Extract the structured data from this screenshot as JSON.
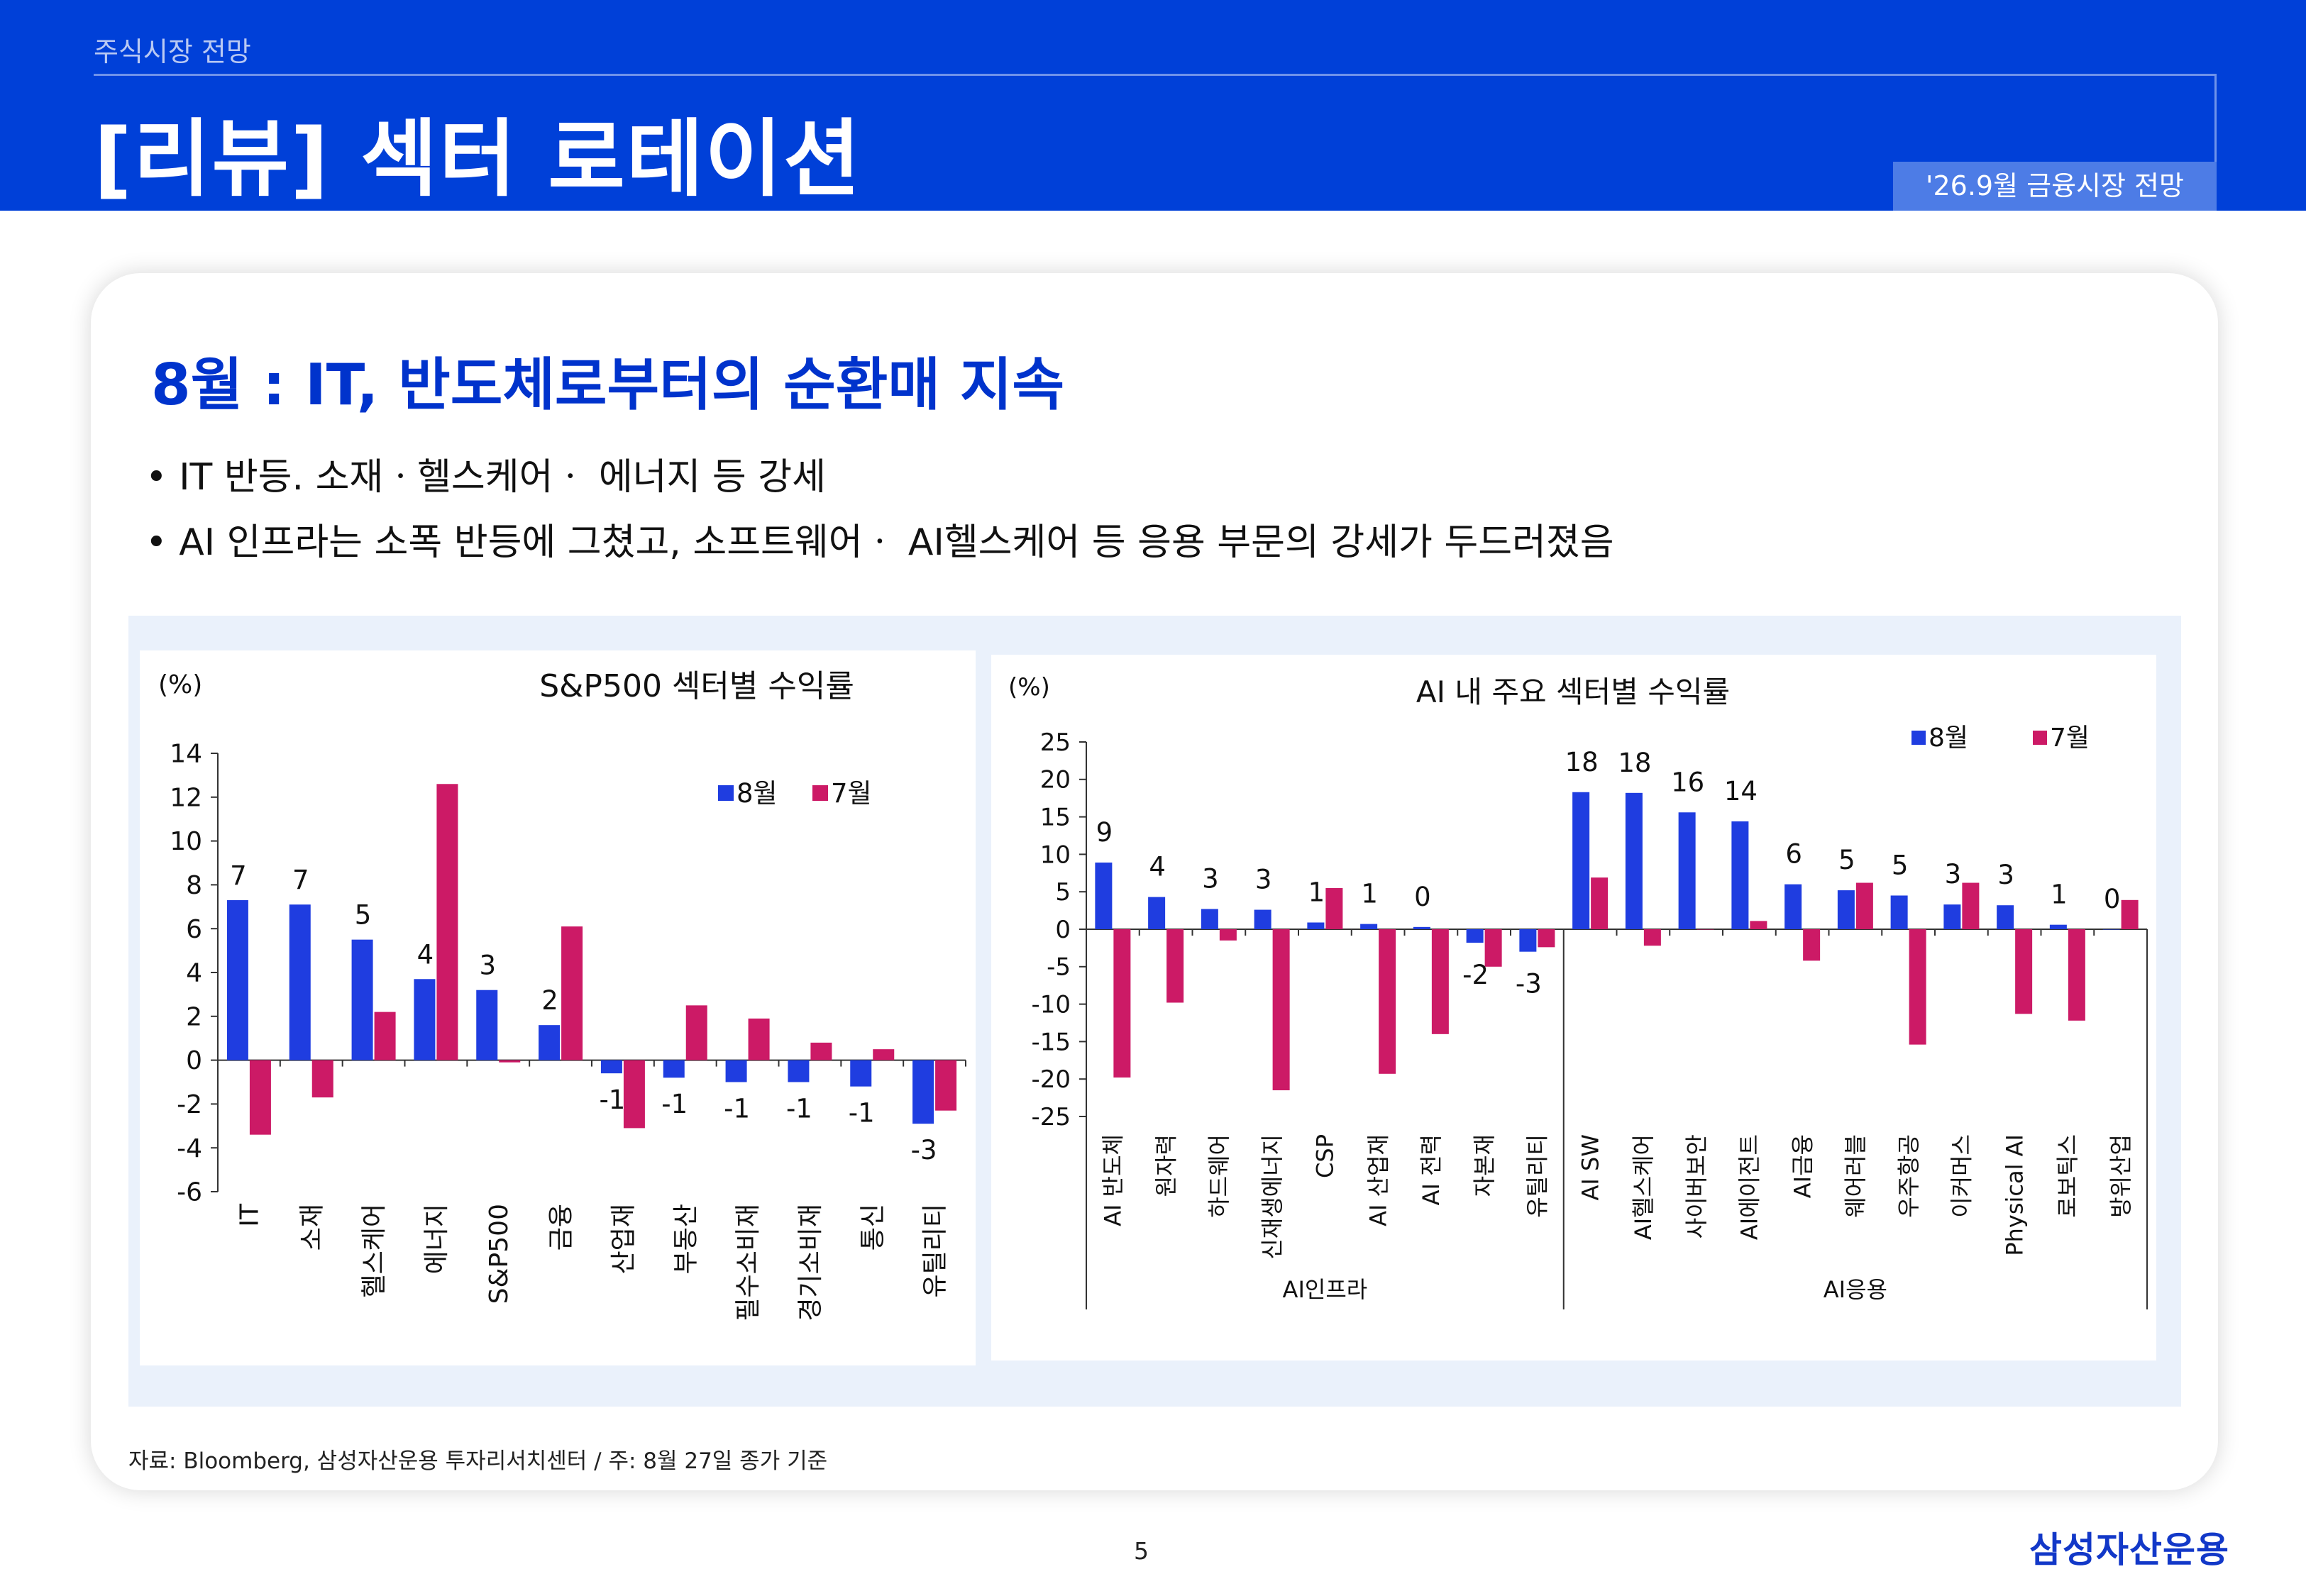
{
  "header": {
    "section": "주식시장 전망",
    "title": "[리뷰] 섹터 로테이션",
    "tag": "'26.9월 금융시장 전망"
  },
  "headline": "8월 : IT, 반도체로부터의 순환매 지속",
  "bullets": [
    "• IT 반등. 소재ㆍ헬스케어ㆍ 에너지 등 강세",
    "• AI 인프라는 소폭 반등에 그쳤고, 소프트웨어ㆍ AI헬스케어 등 응용 부문의 강세가 두드러졌음"
  ],
  "colors": {
    "aug": "#1f3de0",
    "jul": "#cc1a66",
    "header": "#0040d8"
  },
  "chart_data": [
    {
      "type": "bar",
      "title": "S&P500 섹터별 수익률",
      "unit": "(%)",
      "categories": [
        "IT",
        "소재",
        "헬스케어",
        "에너지",
        "S&P500",
        "금융",
        "산업재",
        "부동산",
        "필수소비재",
        "경기소비재",
        "통신",
        "유틸리티"
      ],
      "series": [
        {
          "name": "8월",
          "values": [
            7.3,
            7.1,
            5.5,
            3.7,
            3.2,
            1.6,
            -0.6,
            -0.8,
            -1.0,
            -1.0,
            -1.2,
            -2.9
          ]
        },
        {
          "name": "7월",
          "values": [
            -3.4,
            -1.7,
            2.2,
            12.6,
            -0.1,
            6.1,
            -3.1,
            2.5,
            1.9,
            0.8,
            0.5,
            -2.3
          ]
        }
      ],
      "data_labels": [
        "7",
        "7",
        "5",
        "4",
        "3",
        "2",
        "-1",
        "-1",
        "-1",
        "-1",
        "-1",
        "-3"
      ],
      "ylim": [
        -6,
        14
      ],
      "yticks": [
        14,
        12,
        10,
        8,
        6,
        4,
        2,
        0,
        -2,
        -4,
        -6
      ],
      "legend": "top-right"
    },
    {
      "type": "bar",
      "title": "AI 내 주요 섹터별 수익률",
      "unit": "(%)",
      "categories": [
        "AI 반도체",
        "원자력",
        "하드웨어",
        "신재생에너지",
        "CSP",
        "AI 산업재",
        "AI 전력",
        "자본재",
        "유틸리티",
        "AI SW",
        "AI헬스케어",
        "사이버보안",
        "AI에이전트",
        "AI금융",
        "웨어러블",
        "우주항공",
        "이커머스",
        "Physical AI",
        "로보틱스",
        "방위산업"
      ],
      "series": [
        {
          "name": "8월",
          "values": [
            8.9,
            4.3,
            2.7,
            2.6,
            0.9,
            0.7,
            0.3,
            -1.8,
            -3.0,
            18.3,
            18.2,
            15.6,
            14.4,
            6.0,
            5.2,
            4.5,
            3.3,
            3.2,
            0.6,
            0.0
          ]
        },
        {
          "name": "7월",
          "values": [
            -19.8,
            -9.8,
            -1.5,
            -21.5,
            5.5,
            -19.3,
            -14.0,
            -5.0,
            -2.4,
            6.9,
            -2.2,
            0.0,
            1.1,
            -4.2,
            6.2,
            -15.4,
            6.2,
            -11.3,
            -12.2,
            3.9
          ]
        }
      ],
      "data_labels": [
        "9",
        "4",
        "3",
        "3",
        "1",
        "1",
        "0",
        "-2",
        "-3",
        "18",
        "18",
        "16",
        "14",
        "6",
        "5",
        "5",
        "3",
        "3",
        "1",
        "0"
      ],
      "groups": [
        {
          "name": "AI인프라",
          "start": 0,
          "end": 8
        },
        {
          "name": "AI응용",
          "start": 9,
          "end": 19
        }
      ],
      "ylim": [
        -25,
        25
      ],
      "yticks": [
        25,
        20,
        15,
        10,
        5,
        0,
        -5,
        -10,
        -15,
        -20,
        -25
      ],
      "legend": "top-right"
    }
  ],
  "footer": {
    "source": "자료: Bloomberg, 삼성자산운용 투자리서치센터 / 주: 8월 27일 종가 기준",
    "page": "5",
    "logo": "삼성자산운용"
  }
}
